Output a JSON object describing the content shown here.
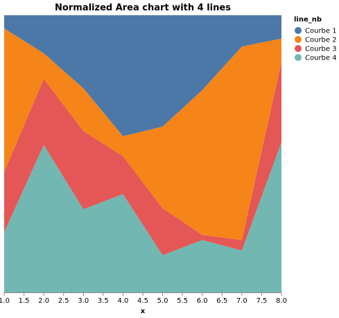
{
  "chart_data": {
    "type": "area",
    "stacked": "normalize",
    "title": "Normalized Area chart with 4 lines",
    "xlabel": "x",
    "ylabel": "",
    "xlim": [
      1,
      8
    ],
    "ylim": [
      0,
      1
    ],
    "x_ticks": [
      "1.0",
      "1.5",
      "2.0",
      "2.5",
      "3.0",
      "3.5",
      "4.0",
      "4.5",
      "5.0",
      "5.5",
      "6.0",
      "6.5",
      "7.0",
      "7.5",
      "8.0"
    ],
    "grid": false,
    "legend_title": "line_nb",
    "legend_position": "right",
    "x": [
      1,
      2,
      3,
      4,
      5,
      6,
      7,
      8
    ],
    "series": [
      {
        "name": "Courbe 1",
        "color": "#4c78a8",
        "values": [
          0.05,
          0.15,
          0.29,
          0.48,
          0.45,
          0.3,
          0.12,
          0.09
        ]
      },
      {
        "name": "Courbe 2",
        "color": "#f58518",
        "values": [
          0.55,
          0.1,
          0.17,
          0.08,
          0.33,
          0.58,
          0.74,
          0.09
        ]
      },
      {
        "name": "Courbe 3",
        "color": "#e45756",
        "values": [
          0.23,
          0.26,
          0.31,
          0.15,
          0.19,
          0.02,
          0.04,
          0.31
        ]
      },
      {
        "name": "Courbe 4",
        "color": "#72b7b2",
        "values": [
          0.23,
          0.58,
          0.33,
          0.39,
          0.15,
          0.21,
          0.16,
          0.58
        ]
      }
    ]
  }
}
